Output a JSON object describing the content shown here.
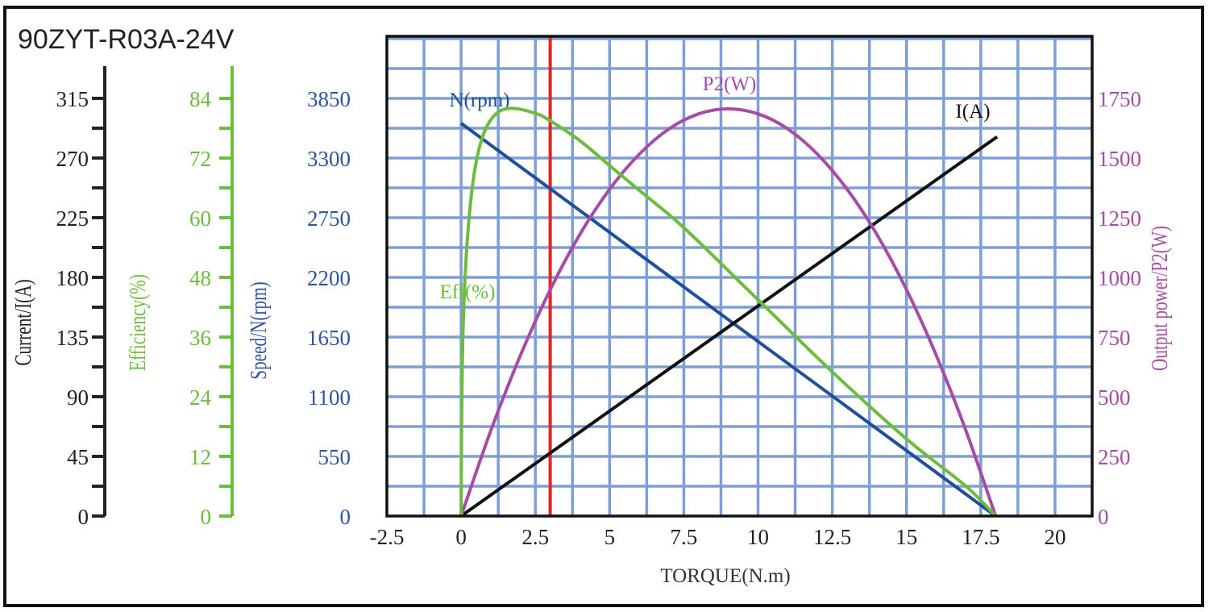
{
  "chart_data": {
    "type": "line",
    "title": "90ZYT-R03A-24V",
    "xlabel": "TORQUE(N.m)",
    "xlim": [
      -2.5,
      21.25
    ],
    "xticks": [
      "-2.5",
      "0",
      "2.5",
      "5",
      "7.5",
      "10",
      "12.5",
      "15",
      "17.5",
      "20"
    ],
    "grid": true,
    "marker_line": {
      "x": 3,
      "color": "#e8221e"
    },
    "axes": [
      {
        "id": "current",
        "label": "Current/I(A)",
        "side": "left",
        "color": "#222222",
        "ylim": [
          0,
          361.8
        ],
        "ticks": [
          "0",
          "45",
          "90",
          "135",
          "180",
          "225",
          "270",
          "315"
        ]
      },
      {
        "id": "efficiency",
        "label": "Efficiency(%)",
        "side": "left",
        "color": "#6cbd3c",
        "ylim": [
          0,
          96.5
        ],
        "ticks": [
          "0",
          "12",
          "24",
          "36",
          "48",
          "60",
          "72",
          "84"
        ]
      },
      {
        "id": "speed",
        "label": "Speed/N(rpm)",
        "side": "left",
        "color": "#2d55a0",
        "ylim": [
          0,
          4422
        ],
        "ticks": [
          "0",
          "550",
          "1100",
          "1650",
          "2200",
          "2750",
          "3300",
          "3850"
        ]
      },
      {
        "id": "power",
        "label": "Output power/P2(W)",
        "side": "right",
        "color": "#a64ca6",
        "ylim": [
          0,
          2010
        ],
        "ticks": [
          "0",
          "250",
          "500",
          "750",
          "1000",
          "1250",
          "1500",
          "1750"
        ]
      }
    ],
    "series": [
      {
        "name": "N(rpm)",
        "axis": "speed",
        "color": "#1f4e9c",
        "points": [
          [
            0,
            3620
          ],
          [
            18,
            0
          ]
        ]
      },
      {
        "name": "I(A)",
        "axis": "current",
        "color": "#111111",
        "points": [
          [
            0,
            0
          ],
          [
            18.05,
            286
          ]
        ]
      },
      {
        "name": "P2(W)",
        "axis": "power",
        "color": "#a64ca6",
        "points": [
          [
            0,
            0
          ],
          [
            1,
            358
          ],
          [
            2,
            674
          ],
          [
            3,
            948
          ],
          [
            4,
            1180
          ],
          [
            5,
            1369
          ],
          [
            6,
            1516
          ],
          [
            7,
            1622
          ],
          [
            8,
            1685
          ],
          [
            9,
            1706
          ],
          [
            10,
            1685
          ],
          [
            11,
            1622
          ],
          [
            12,
            1516
          ],
          [
            13,
            1369
          ],
          [
            14,
            1180
          ],
          [
            15,
            948
          ],
          [
            16,
            674
          ],
          [
            17,
            358
          ],
          [
            18,
            0
          ]
        ]
      },
      {
        "name": "Eff(%)",
        "axis": "efficiency",
        "color": "#6cbd3c",
        "points": [
          [
            0,
            0
          ],
          [
            0.02,
            20
          ],
          [
            0.06,
            36
          ],
          [
            0.15,
            50
          ],
          [
            0.3,
            62
          ],
          [
            0.5,
            71
          ],
          [
            0.8,
            77.5
          ],
          [
            1.2,
            81
          ],
          [
            1.7,
            82
          ],
          [
            2.5,
            81
          ],
          [
            3,
            79.5
          ],
          [
            4,
            75.5
          ],
          [
            5,
            70.5
          ],
          [
            6,
            65.5
          ],
          [
            7.5,
            58
          ],
          [
            10,
            43.5
          ],
          [
            12.5,
            29
          ],
          [
            15,
            15.5
          ],
          [
            17,
            6
          ],
          [
            18,
            0
          ]
        ]
      }
    ]
  }
}
